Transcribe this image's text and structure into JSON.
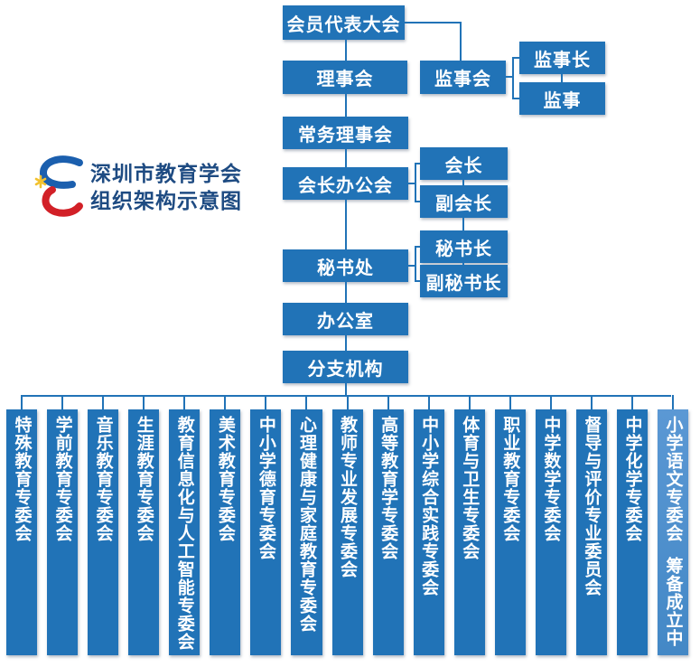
{
  "title": {
    "line1": "深圳市教育学会",
    "line2": "组织架构示意图"
  },
  "logo": {
    "icon": "stylized-E-swoosh",
    "colors": {
      "blue": "#1b5fae",
      "red": "#d22027",
      "star_yellow": "#f2c12e"
    }
  },
  "colors": {
    "box_blue": "#2173b7",
    "light_box_blue": "#5b98d4",
    "title_navy": "#1e4b82",
    "connector": "#2173b7",
    "box_text": "#ffffff"
  },
  "org": {
    "assembly": "会员代表大会",
    "council": "理事会",
    "supervisory_board": "监事会",
    "chief_supervisor": "监事长",
    "supervisor": "监事",
    "standing_council": "常务理事会",
    "president_office": "会长办公会",
    "president": "会长",
    "vice_president": "副会长",
    "secretariat": "秘书处",
    "secretary_general": "秘书长",
    "deputy_secretary_general": "副秘书长",
    "office": "办公室",
    "branches": "分支机构"
  },
  "committees": [
    {
      "label": "特殊教育专委会"
    },
    {
      "label": "学前教育专委会"
    },
    {
      "label": "音乐教育专委会"
    },
    {
      "label": "生涯教育专委会"
    },
    {
      "label": "教育信息化与人工智能专委会"
    },
    {
      "label": "美术教育专委会"
    },
    {
      "label": "中小学德育专委会"
    },
    {
      "label": "心理健康与家庭教育专委会"
    },
    {
      "label": "教师专业发展专委会"
    },
    {
      "label": "高等教育学专委会"
    },
    {
      "label": "中小学综合实践专委会"
    },
    {
      "label": "体育与卫生专委会"
    },
    {
      "label": "职业教育专委会"
    },
    {
      "label": "中学数学专委会"
    },
    {
      "label": "督导与评价专业委员会"
    },
    {
      "label": "中学化学专委会"
    },
    {
      "label": "小学语文专委会",
      "note": "筹备成立中",
      "variant": "light"
    }
  ]
}
